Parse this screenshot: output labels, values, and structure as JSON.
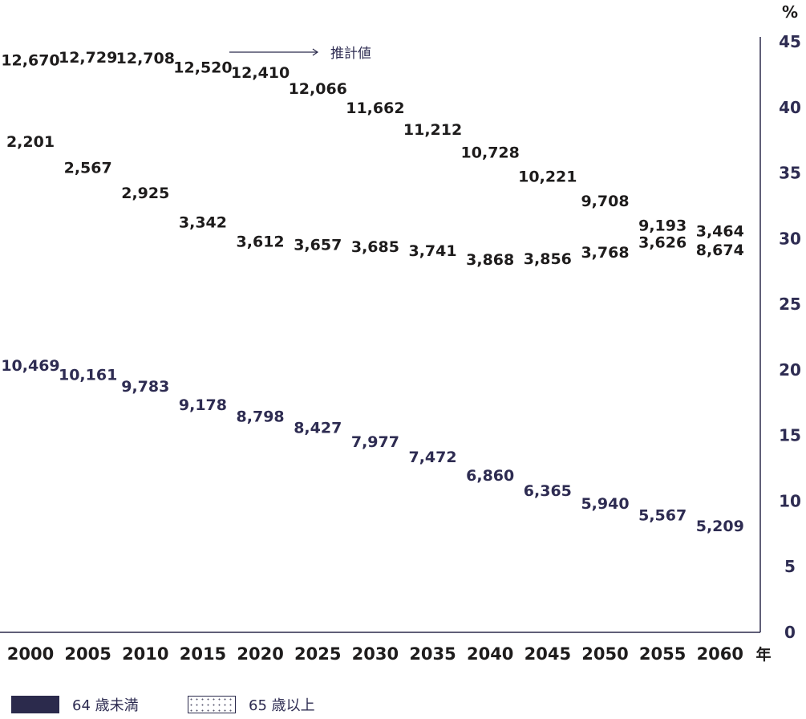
{
  "chart_data": {
    "type": "line",
    "x": [
      "2000",
      "2005",
      "2010",
      "2015",
      "2020",
      "2025",
      "2030",
      "2035",
      "2040",
      "2045",
      "2050",
      "2055",
      "2060"
    ],
    "x_unit": "年",
    "series": [
      {
        "values": [
          12670,
          12729,
          12708,
          12520,
          12410,
          12066,
          11662,
          11212,
          10728,
          10221,
          9708,
          9193,
          8674
        ],
        "color": "#1e1c1c"
      },
      {
        "values": [
          2201,
          2567,
          2925,
          3342,
          3612,
          3657,
          3685,
          3741,
          3868,
          3856,
          3768,
          3626,
          3464
        ],
        "color": "#1e1c1c"
      },
      {
        "values": [
          10469,
          10161,
          9783,
          9178,
          8798,
          8427,
          7977,
          7472,
          6860,
          6365,
          5940,
          5567,
          5209
        ],
        "color": "#2e2c52"
      }
    ],
    "value_labels": [
      [
        "12,670",
        "12,729",
        "12,708",
        "12,520",
        "12,410",
        "12,066",
        "11,662",
        "11,212",
        "10,728",
        "10,221",
        "9,708",
        "9,193",
        "8,674"
      ],
      [
        "2,201",
        "2,567",
        "2,925",
        "3,342",
        "3,612",
        "3,657",
        "3,685",
        "3,741",
        "3,868",
        "3,856",
        "3,768",
        "3,626",
        "3,464"
      ],
      [
        "10,469",
        "10,161",
        "9,783",
        "9,178",
        "8,798",
        "8,427",
        "7,977",
        "7,472",
        "6,860",
        "6,365",
        "5,940",
        "5,567",
        "5,209"
      ]
    ],
    "y_right": {
      "unit": "%",
      "ticks": [
        0,
        5,
        10,
        15,
        20,
        25,
        30,
        35,
        40,
        45
      ],
      "range": [
        0,
        45
      ]
    },
    "annotation": "推計値",
    "annotation_start": "2015",
    "legend": [
      {
        "label": "64 歳未満",
        "style": "solid",
        "color": "#2b2a4c"
      },
      {
        "label": "65 歳以上",
        "style": "dotted",
        "color": "#2b2a4c"
      }
    ],
    "legend_position": "bottom-left",
    "grid": false
  }
}
